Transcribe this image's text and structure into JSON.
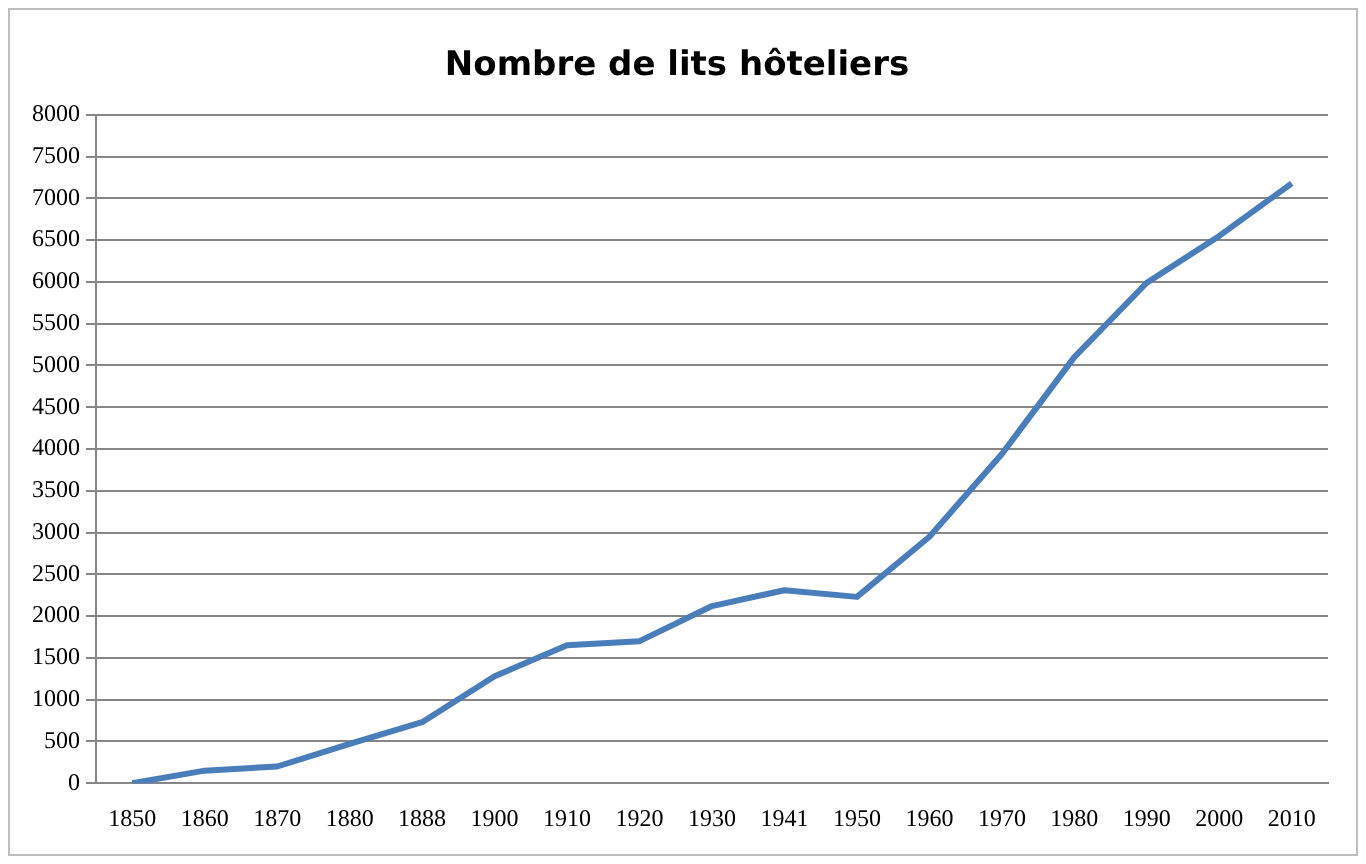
{
  "chart_data": {
    "type": "line",
    "title": "Nombre de lits hôteliers",
    "categories": [
      "1850",
      "1860",
      "1870",
      "1880",
      "1888",
      "1900",
      "1910",
      "1920",
      "1930",
      "1941",
      "1950",
      "1960",
      "1970",
      "1980",
      "1990",
      "2000",
      "2010"
    ],
    "series": [
      {
        "color": "#4a7ebb",
        "values": [
          0,
          150,
          200,
          470,
          730,
          1280,
          1650,
          1700,
          2120,
          2310,
          2230,
          2950,
          3940,
          5100,
          5990,
          6550,
          7180
        ]
      }
    ],
    "ylim": [
      0,
      8000
    ],
    "yticks": [
      0,
      500,
      1000,
      1500,
      2000,
      2500,
      3000,
      3500,
      4000,
      4500,
      5000,
      5500,
      6000,
      6500,
      7000,
      7500,
      8000
    ],
    "grid": "y",
    "legend": false,
    "marker": "none",
    "line_style": "solid"
  }
}
